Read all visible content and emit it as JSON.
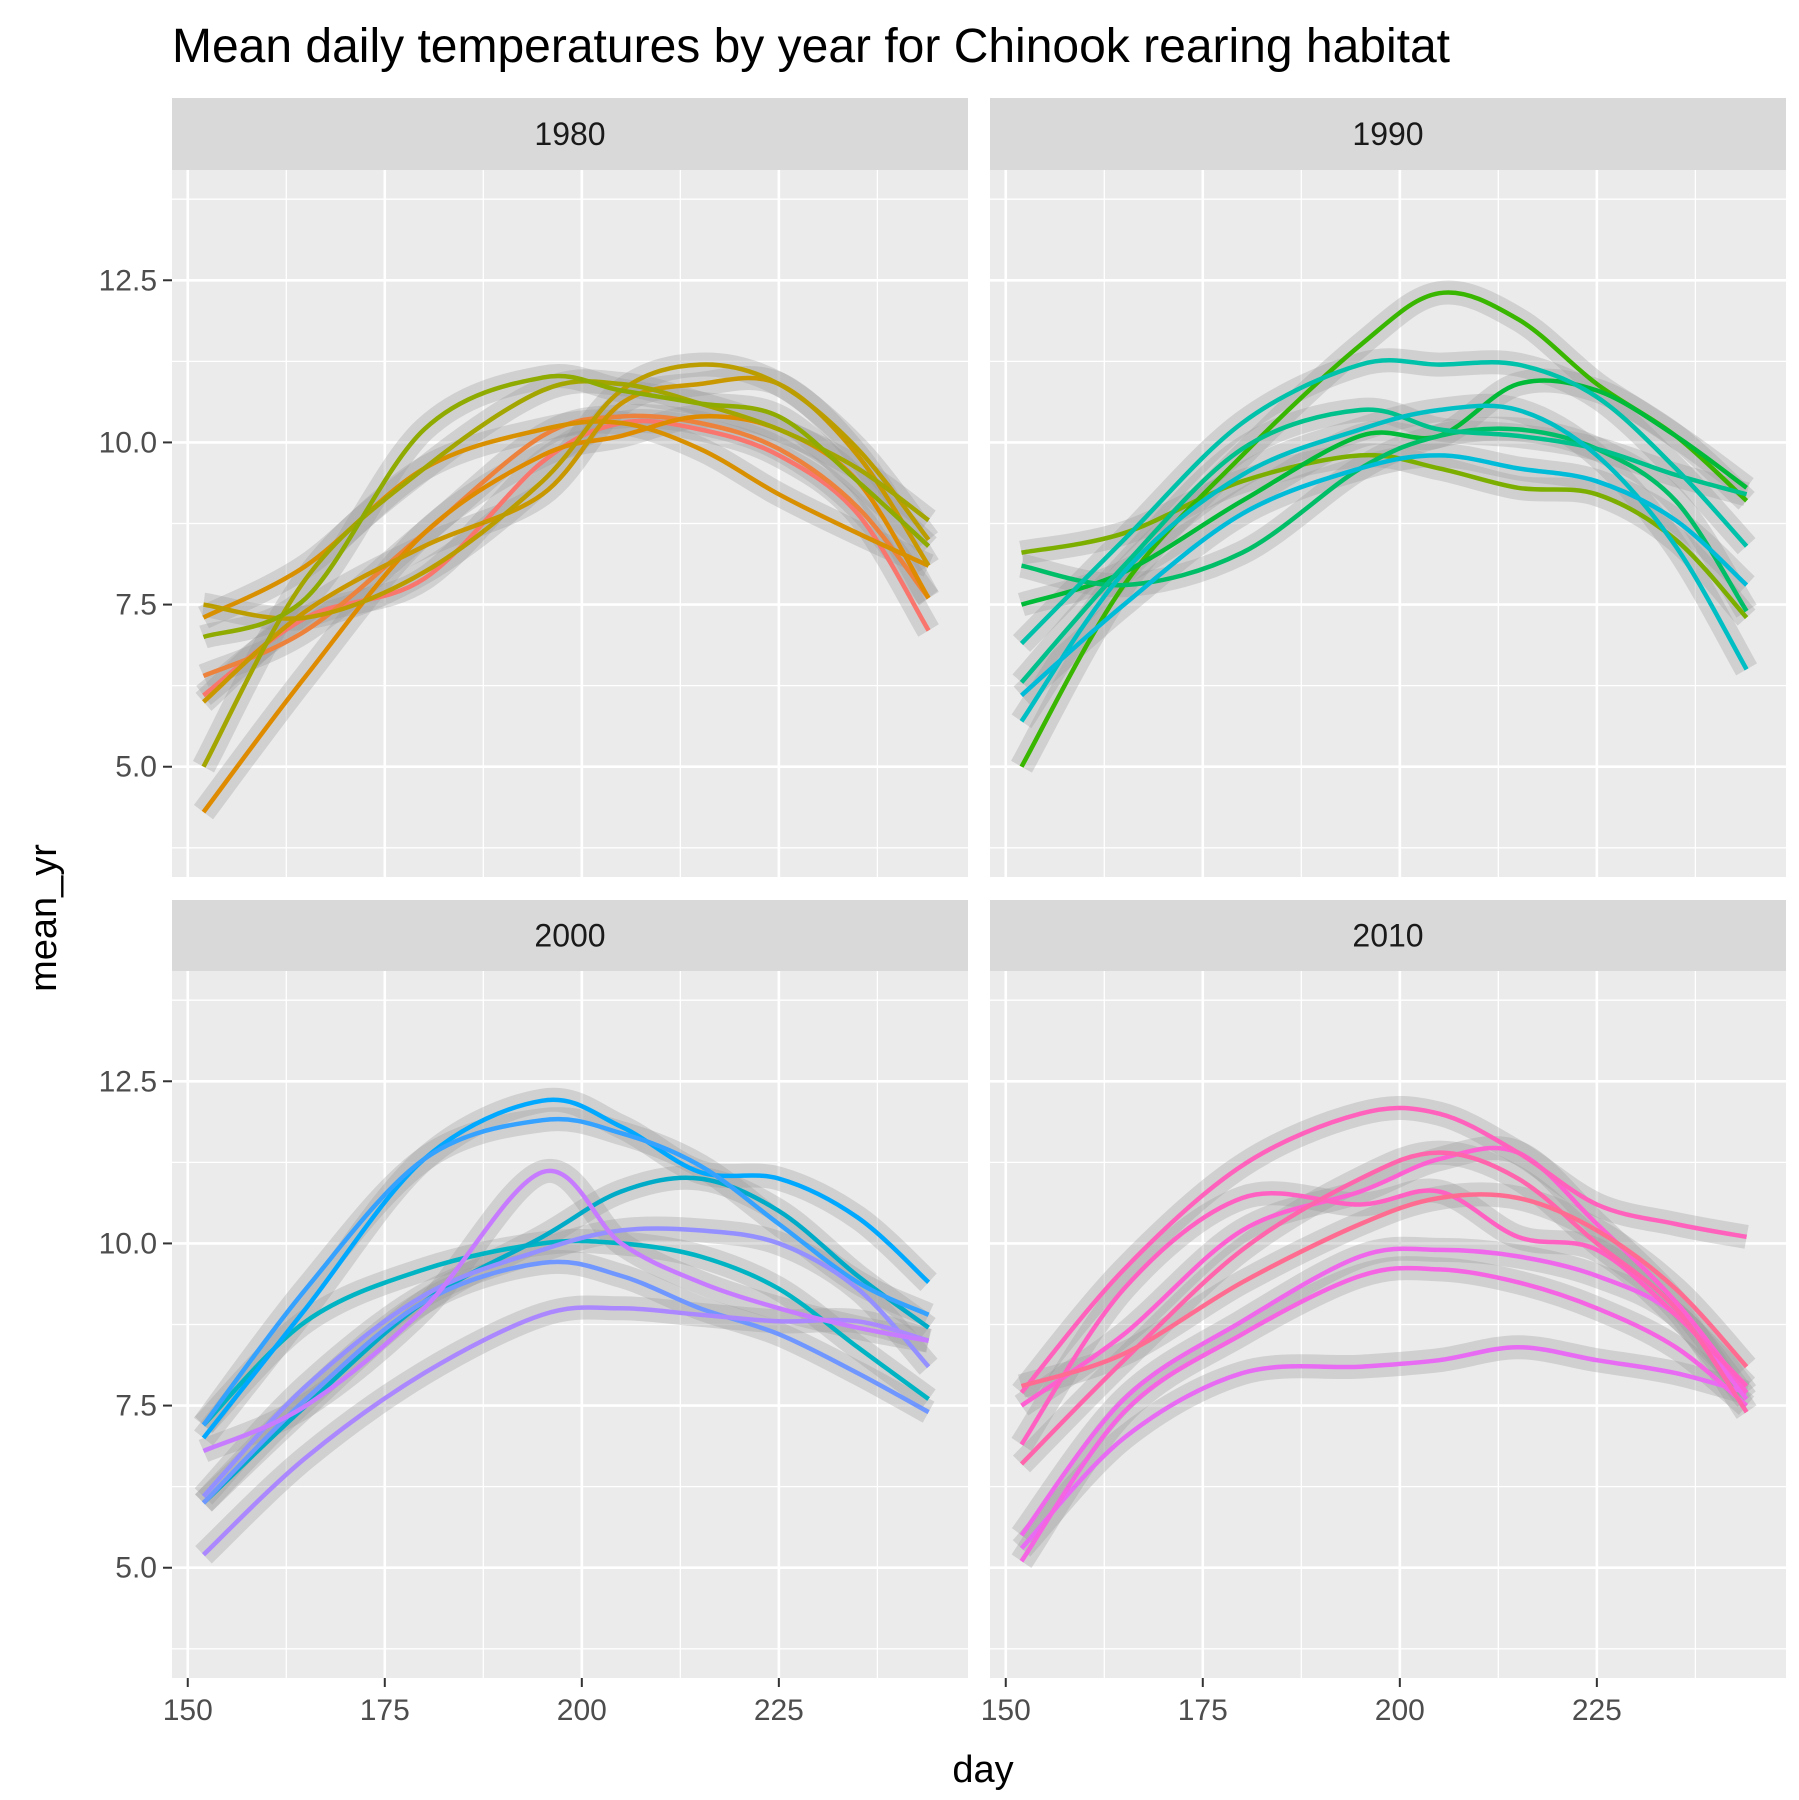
{
  "chart_data": {
    "type": "line",
    "title": "Mean daily temperatures by year for Chinook rearing habitat",
    "xlabel": "day",
    "ylabel": "mean_yr",
    "xlim": [
      148,
      249
    ],
    "ylim": [
      3.3,
      14.2
    ],
    "x_ticks": [
      150,
      175,
      200,
      225
    ],
    "y_ticks": [
      5.0,
      7.5,
      10.0,
      12.5
    ],
    "x_tick_labels": [
      "150",
      "175",
      "200",
      "225"
    ],
    "y_tick_labels": [
      "5.0",
      "7.5",
      "10.0",
      "12.5"
    ],
    "grid": true,
    "legend": "none",
    "band_color": "#999999",
    "facets": [
      {
        "label": "1980",
        "series": [
          {
            "color": "#F8766D",
            "x": [
              152,
              165,
              180,
              195,
              205,
              215,
              225,
              235,
              244
            ],
            "y": [
              6.1,
              7.3,
              7.9,
              9.7,
              10.3,
              10.2,
              9.8,
              8.9,
              7.1
            ]
          },
          {
            "color": "#EC823C",
            "x": [
              152,
              165,
              180,
              195,
              205,
              215,
              225,
              235,
              244
            ],
            "y": [
              6.4,
              7.1,
              8.6,
              10.1,
              10.4,
              10.3,
              9.9,
              9.0,
              7.6
            ]
          },
          {
            "color": "#DF8B00",
            "x": [
              152,
              165,
              180,
              195,
              205,
              215,
              225,
              235,
              244
            ],
            "y": [
              4.3,
              6.4,
              8.6,
              9.8,
              10.1,
              10.4,
              10.2,
              9.4,
              7.6
            ]
          },
          {
            "color": "#D89000",
            "x": [
              152,
              165,
              180,
              195,
              205,
              215,
              225,
              235,
              244
            ],
            "y": [
              7.3,
              8.1,
              9.6,
              10.2,
              10.3,
              9.9,
              9.2,
              8.6,
              8.1
            ]
          },
          {
            "color": "#C99800",
            "x": [
              152,
              165,
              180,
              195,
              205,
              215,
              225,
              235,
              244
            ],
            "y": [
              6.0,
              7.4,
              8.4,
              9.2,
              10.6,
              10.9,
              10.9,
              9.8,
              8.1
            ]
          },
          {
            "color": "#BB9D00",
            "x": [
              152,
              165,
              180,
              195,
              205,
              215,
              225,
              235,
              244
            ],
            "y": [
              7.5,
              7.3,
              8.0,
              9.4,
              10.8,
              11.2,
              10.9,
              9.9,
              8.5
            ]
          },
          {
            "color": "#A3A500",
            "x": [
              152,
              165,
              180,
              195,
              205,
              215,
              225,
              235,
              244
            ],
            "y": [
              5.0,
              7.9,
              9.6,
              10.8,
              10.9,
              10.6,
              10.2,
              9.6,
              8.8
            ]
          },
          {
            "color": "#8FAA00",
            "x": [
              152,
              165,
              180,
              195,
              205,
              215,
              225,
              235,
              244
            ],
            "y": [
              7.0,
              7.6,
              10.2,
              11.0,
              10.8,
              10.6,
              10.4,
              9.4,
              8.4
            ]
          }
        ]
      },
      {
        "label": "1990",
        "series": [
          {
            "color": "#7CAE00",
            "x": [
              152,
              165,
              180,
              195,
              205,
              215,
              225,
              235,
              244
            ],
            "y": [
              8.3,
              8.6,
              9.4,
              9.8,
              9.6,
              9.3,
              9.2,
              8.5,
              7.3
            ]
          },
          {
            "color": "#39B600",
            "x": [
              152,
              165,
              180,
              195,
              205,
              215,
              225,
              235,
              244
            ],
            "y": [
              5.0,
              7.8,
              9.8,
              11.5,
              12.3,
              11.9,
              10.9,
              10.1,
              9.1
            ]
          },
          {
            "color": "#00BA38",
            "x": [
              152,
              165,
              180,
              195,
              205,
              215,
              225,
              235,
              244
            ],
            "y": [
              7.5,
              8.0,
              9.1,
              10.1,
              10.1,
              10.9,
              10.8,
              10.1,
              9.3
            ]
          },
          {
            "color": "#00BE67",
            "x": [
              152,
              165,
              180,
              195,
              205,
              215,
              225,
              235,
              244
            ],
            "y": [
              8.1,
              7.8,
              8.3,
              9.6,
              10.1,
              10.2,
              9.9,
              9.1,
              7.4
            ]
          },
          {
            "color": "#00C08B",
            "x": [
              152,
              165,
              180,
              195,
              205,
              215,
              225,
              235,
              244
            ],
            "y": [
              6.3,
              8.1,
              9.9,
              10.5,
              10.2,
              10.1,
              9.9,
              9.5,
              9.2
            ]
          },
          {
            "color": "#00C1A9",
            "x": [
              152,
              165,
              180,
              195,
              205,
              215,
              225,
              235,
              244
            ],
            "y": [
              6.9,
              8.5,
              10.3,
              11.2,
              11.2,
              11.2,
              10.7,
              9.6,
              8.4
            ]
          },
          {
            "color": "#00BFC4",
            "x": [
              152,
              165,
              180,
              195,
              205,
              215,
              225,
              235,
              244
            ],
            "y": [
              5.7,
              8.0,
              9.5,
              10.2,
              10.5,
              10.5,
              9.8,
              8.4,
              6.5
            ]
          },
          {
            "color": "#00BCD8",
            "x": [
              152,
              165,
              180,
              195,
              205,
              215,
              225,
              235,
              244
            ],
            "y": [
              6.1,
              7.5,
              8.9,
              9.6,
              9.8,
              9.6,
              9.4,
              8.8,
              7.8
            ]
          }
        ]
      },
      {
        "label": "2000",
        "series": [
          {
            "color": "#00B4C4",
            "x": [
              152,
              165,
              180,
              195,
              205,
              215,
              225,
              235,
              244
            ],
            "y": [
              7.2,
              8.8,
              9.6,
              10.0,
              10.0,
              9.8,
              9.3,
              8.4,
              7.6
            ]
          },
          {
            "color": "#00ABC8",
            "x": [
              152,
              165,
              180,
              195,
              205,
              215,
              225,
              235,
              244
            ],
            "y": [
              6.0,
              7.5,
              9.1,
              10.1,
              10.8,
              11.0,
              10.5,
              9.5,
              8.7
            ]
          },
          {
            "color": "#00A9FF",
            "x": [
              152,
              165,
              180,
              195,
              205,
              215,
              225,
              235,
              244
            ],
            "y": [
              7.0,
              9.0,
              11.3,
              12.2,
              11.8,
              11.1,
              11.0,
              10.4,
              9.4
            ]
          },
          {
            "color": "#35A2FF",
            "x": [
              152,
              165,
              180,
              195,
              205,
              215,
              225,
              235,
              244
            ],
            "y": [
              7.2,
              9.3,
              11.3,
              11.9,
              11.7,
              11.2,
              10.3,
              9.4,
              8.9
            ]
          },
          {
            "color": "#7097FF",
            "x": [
              152,
              165,
              180,
              195,
              205,
              215,
              225,
              235,
              244
            ],
            "y": [
              6.0,
              7.6,
              9.1,
              9.7,
              9.5,
              9.0,
              8.6,
              8.0,
              7.4
            ]
          },
          {
            "color": "#9590FF",
            "x": [
              152,
              165,
              180,
              195,
              205,
              215,
              225,
              235,
              244
            ],
            "y": [
              6.1,
              7.8,
              9.2,
              9.9,
              10.2,
              10.2,
              10.0,
              9.3,
              8.1
            ]
          },
          {
            "color": "#AC88FF",
            "x": [
              152,
              165,
              180,
              195,
              205,
              215,
              225,
              235,
              244
            ],
            "y": [
              5.2,
              6.7,
              8.0,
              8.9,
              9.0,
              8.9,
              8.8,
              8.8,
              8.5
            ]
          },
          {
            "color": "#C77CFF",
            "x": [
              152,
              165,
              180,
              195,
              205,
              215,
              225,
              235,
              244
            ],
            "y": [
              6.8,
              7.5,
              9.0,
              11.1,
              10.0,
              9.4,
              9.0,
              8.7,
              8.5
            ]
          }
        ]
      },
      {
        "label": "2010",
        "series": [
          {
            "color": "#E76BF3",
            "x": [
              152,
              165,
              180,
              195,
              205,
              215,
              225,
              235,
              244
            ],
            "y": [
              5.3,
              7.0,
              8.0,
              8.1,
              8.2,
              8.4,
              8.2,
              8.0,
              7.7
            ]
          },
          {
            "color": "#F564E3",
            "x": [
              152,
              165,
              180,
              195,
              205,
              215,
              225,
              235,
              244
            ],
            "y": [
              5.1,
              7.4,
              8.6,
              9.5,
              9.6,
              9.4,
              9.0,
              8.4,
              7.5
            ]
          },
          {
            "color": "#EF67EB",
            "x": [
              152,
              165,
              180,
              195,
              205,
              215,
              225,
              235,
              244
            ],
            "y": [
              5.5,
              7.6,
              8.8,
              9.8,
              9.9,
              9.8,
              9.5,
              8.9,
              7.6
            ]
          },
          {
            "color": "#FD61D1",
            "x": [
              152,
              165,
              180,
              195,
              205,
              215,
              225,
              235,
              244
            ],
            "y": [
              7.5,
              8.6,
              10.2,
              10.8,
              11.3,
              11.4,
              10.3,
              9.1,
              7.7
            ]
          },
          {
            "color": "#FF61C3",
            "x": [
              152,
              165,
              180,
              195,
              205,
              215,
              225,
              235,
              244
            ],
            "y": [
              6.9,
              9.3,
              10.7,
              10.6,
              10.8,
              10.1,
              9.9,
              8.9,
              7.8
            ]
          },
          {
            "color": "#FF62BC",
            "x": [
              152,
              165,
              180,
              195,
              205,
              215,
              225,
              235,
              244
            ],
            "y": [
              7.7,
              9.6,
              11.2,
              12.0,
              12.0,
              11.4,
              10.6,
              10.3,
              10.1
            ]
          },
          {
            "color": "#FF65AC",
            "x": [
              152,
              165,
              180,
              195,
              205,
              215,
              225,
              235,
              244
            ],
            "y": [
              6.6,
              8.2,
              9.9,
              11.0,
              11.4,
              11.0,
              10.0,
              9.0,
              7.4
            ]
          },
          {
            "color": "#FF6C91",
            "x": [
              152,
              165,
              180,
              195,
              205,
              215,
              225,
              235,
              244
            ],
            "y": [
              7.8,
              8.3,
              9.4,
              10.3,
              10.7,
              10.7,
              10.2,
              9.3,
              8.1
            ]
          }
        ]
      }
    ]
  }
}
